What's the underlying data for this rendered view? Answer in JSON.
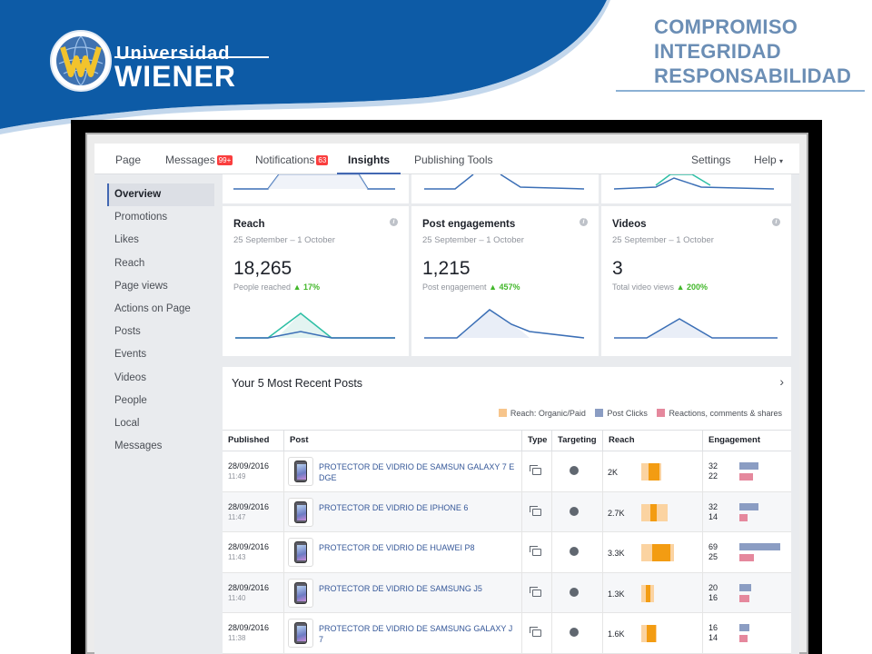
{
  "brand": {
    "logo_line1": "Universidad",
    "logo_line2": "WIENER",
    "values": [
      "COMPROMISO",
      "INTEGRIDAD",
      "RESPONSABILIDAD"
    ],
    "colors": {
      "header_blue": "#0d5ba6",
      "values_text": "#6b8eb5",
      "logo_gold": "#f2c32c"
    }
  },
  "topnav": {
    "items": [
      {
        "label": "Page",
        "badge": ""
      },
      {
        "label": "Messages",
        "badge": "99+"
      },
      {
        "label": "Notifications",
        "badge": "63"
      },
      {
        "label": "Insights",
        "badge": ""
      },
      {
        "label": "Publishing Tools",
        "badge": ""
      }
    ],
    "active": "Insights",
    "settings": "Settings",
    "help": "Help",
    "help_caret": "▾"
  },
  "sidebar": {
    "items": [
      "Overview",
      "Promotions",
      "Likes",
      "Reach",
      "Page views",
      "Actions on Page",
      "Posts",
      "Events",
      "Videos",
      "People",
      "Local",
      "Messages"
    ],
    "active": "Overview"
  },
  "cards": [
    {
      "title": "Reach",
      "date": "25 September – 1 October",
      "value": "18,265",
      "sub": "People reached",
      "change": "17%"
    },
    {
      "title": "Post engagements",
      "date": "25 September – 1 October",
      "value": "1,215",
      "sub": "Post engagement",
      "change": "457%"
    },
    {
      "title": "Videos",
      "date": "25 September – 1 October",
      "value": "3",
      "sub": "Total video views",
      "change": "200%"
    }
  ],
  "info_icon": "i",
  "up_arrow": "▲",
  "posts": {
    "title": "Your 5 Most Recent Posts",
    "chevron": "›",
    "legend": [
      {
        "label": "Reach: Organic/Paid",
        "color": "#f7c58c"
      },
      {
        "label": "Post Clicks",
        "color": "#8b9dc3"
      },
      {
        "label": "Reactions, comments & shares",
        "color": "#e5889d"
      }
    ],
    "columns": [
      "Published",
      "Post",
      "Type",
      "Targeting",
      "Reach",
      "Engagement"
    ],
    "rows": [
      {
        "date": "28/09/2016",
        "time": "11:49",
        "post": "PROTECTOR DE VIDRIO DE SAMSUN GALAXY 7 E DGE",
        "reach": "2K",
        "reach_organic": 2000,
        "reach_paid": 1200,
        "clicks": "32",
        "reactions": "22",
        "clicks_n": 32,
        "reactions_n": 22
      },
      {
        "date": "28/09/2016",
        "time": "11:47",
        "post": "PROTECTOR DE VIDRIO DE IPHONE 6",
        "reach": "2.7K",
        "reach_organic": 2700,
        "reach_paid": 600,
        "clicks": "32",
        "reactions": "14",
        "clicks_n": 32,
        "reactions_n": 14
      },
      {
        "date": "28/09/2016",
        "time": "11:43",
        "post": "PROTECTOR DE VIDRIO DE HUAWEI P8",
        "reach": "3.3K",
        "reach_organic": 3300,
        "reach_paid": 1800,
        "clicks": "69",
        "reactions": "25",
        "clicks_n": 69,
        "reactions_n": 25
      },
      {
        "date": "28/09/2016",
        "time": "11:40",
        "post": "PROTECTOR DE VIDRIO DE SAMSUNG J5",
        "reach": "1.3K",
        "reach_organic": 1300,
        "reach_paid": 500,
        "clicks": "20",
        "reactions": "16",
        "clicks_n": 20,
        "reactions_n": 16
      },
      {
        "date": "28/09/2016",
        "time": "11:38",
        "post": "PROTECTOR DE VIDRIO DE SAMSUNG GALAXY J 7",
        "reach": "1.6K",
        "reach_organic": 1600,
        "reach_paid": 900,
        "clicks": "16",
        "reactions": "14",
        "clicks_n": 16,
        "reactions_n": 14
      }
    ]
  }
}
